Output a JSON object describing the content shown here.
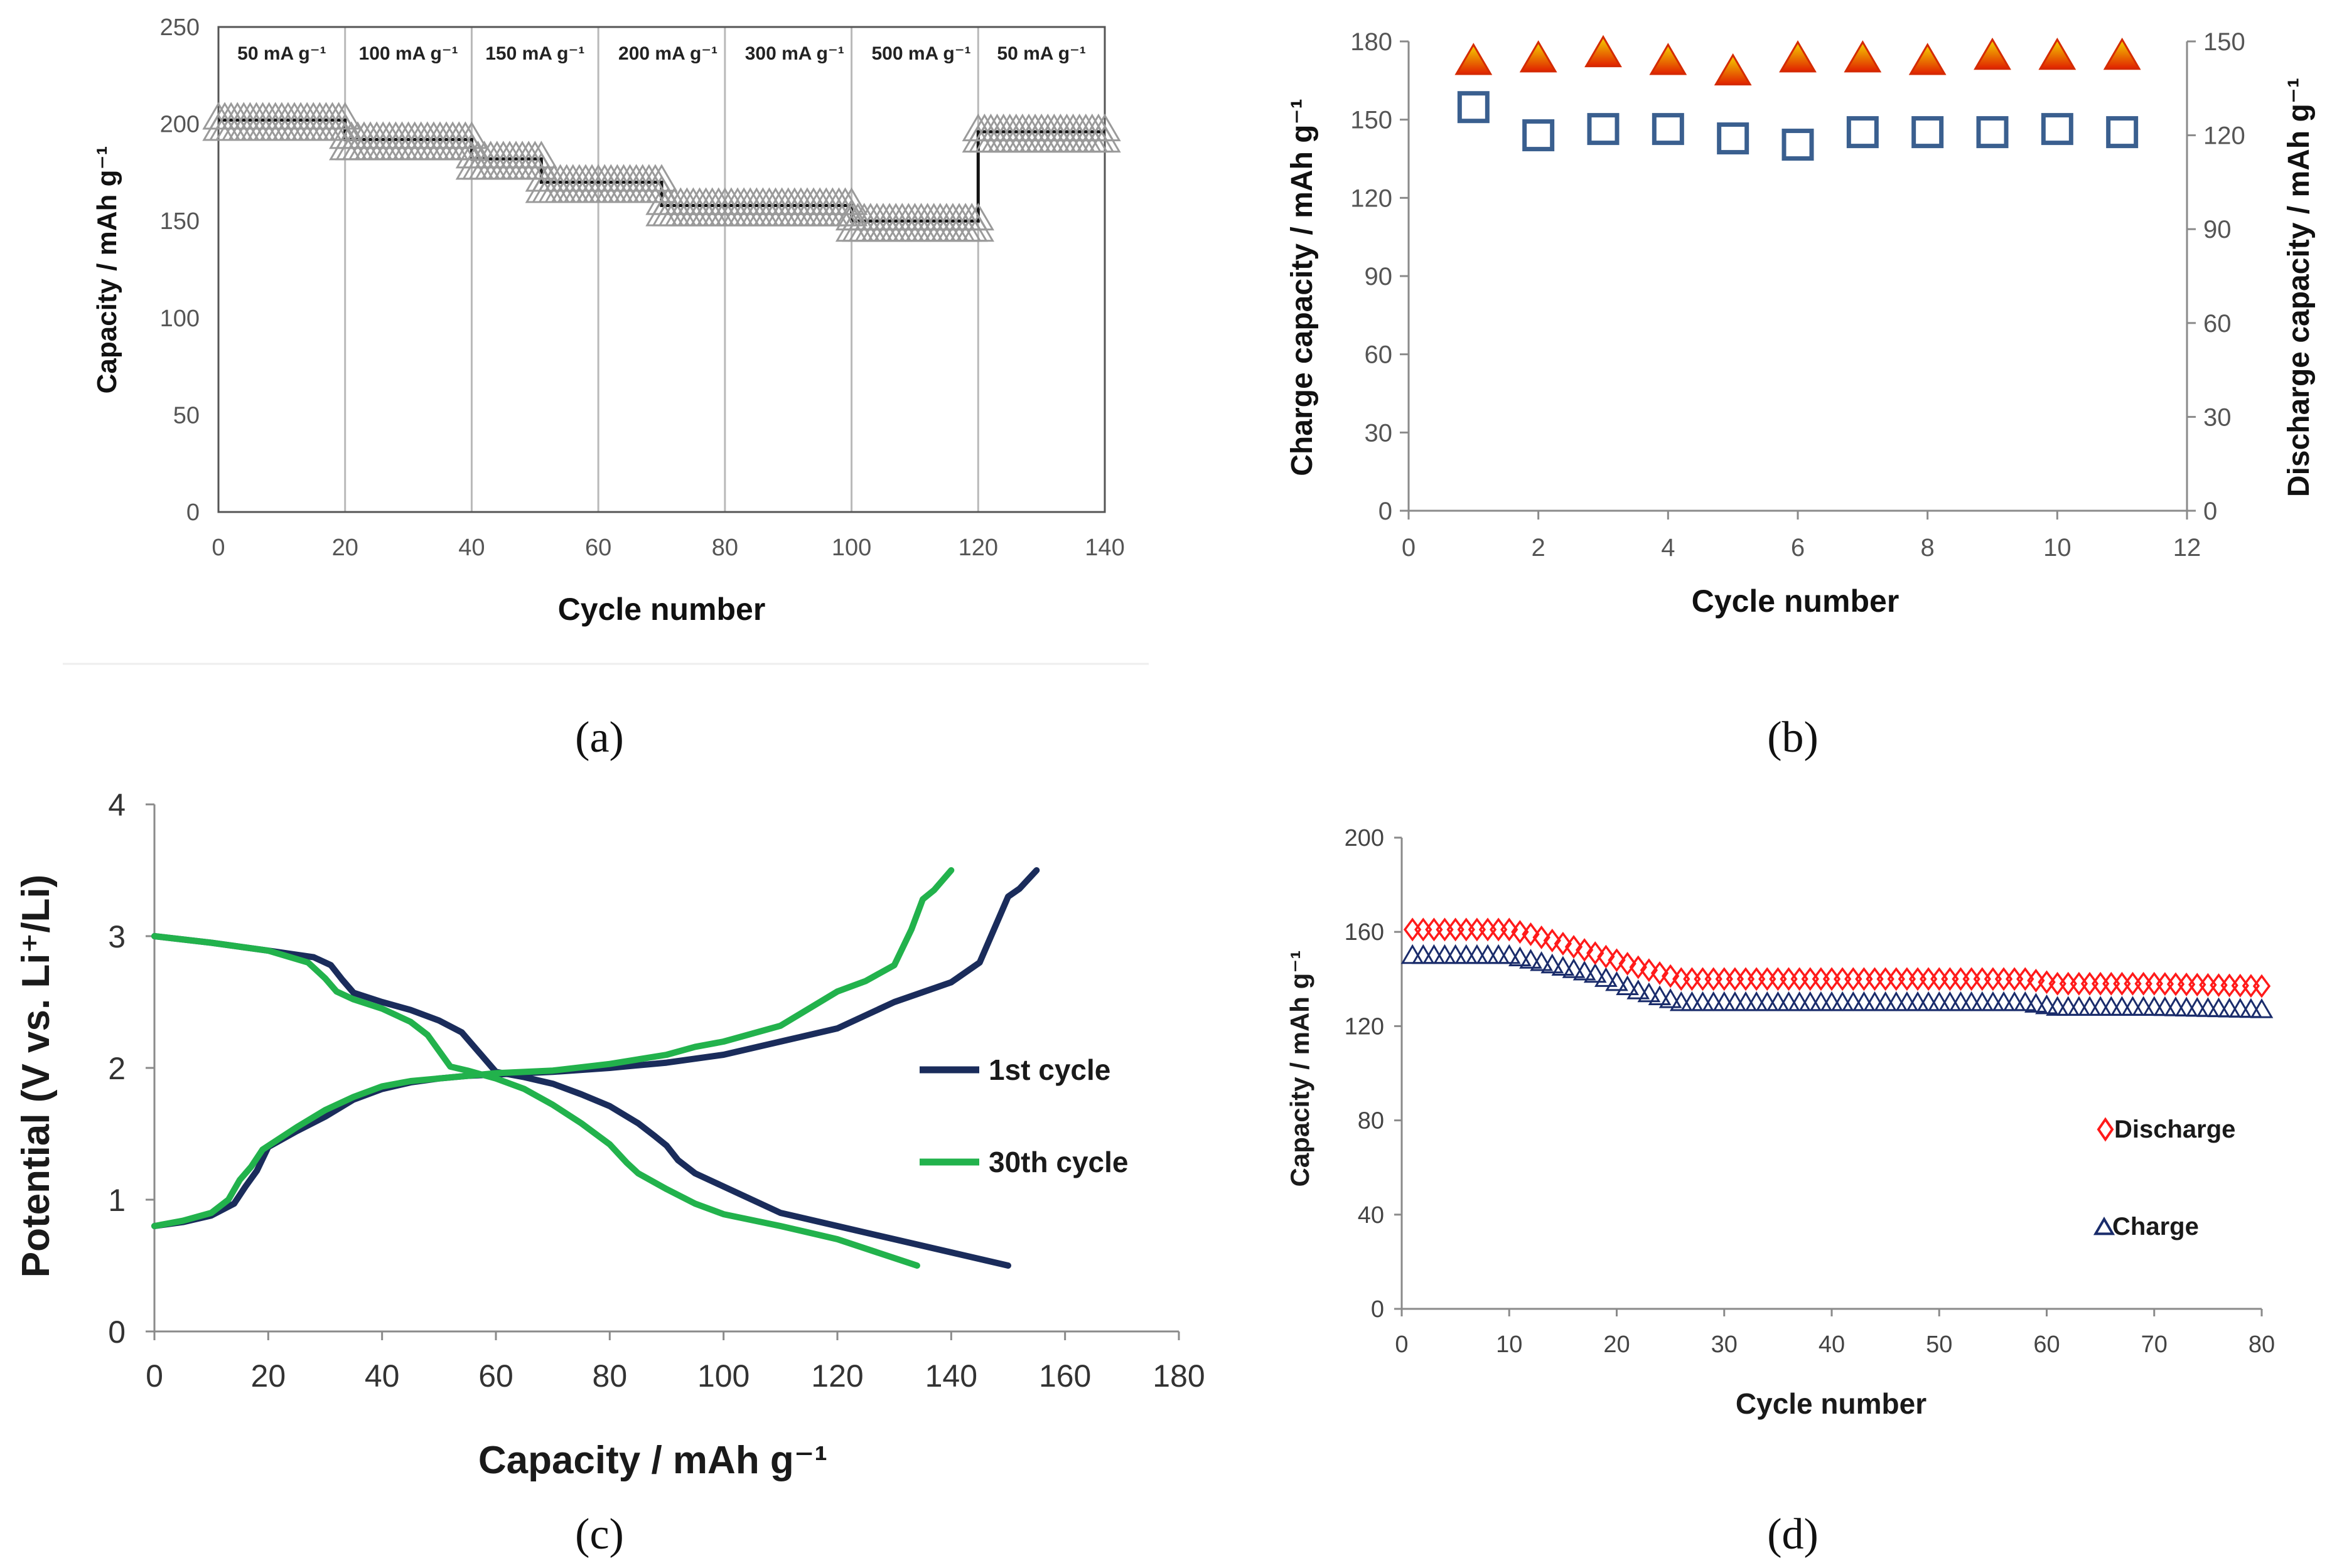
{
  "colors": {
    "rate_marker": "#9a9a9a",
    "rate_line": "#111111",
    "triangle_fill_top": "#f5d300",
    "triangle_fill_bottom": "#e02000",
    "triangle_stroke": "#d42a00",
    "square_stroke": "#3a5f8f",
    "cycle1": "#1a2c5b",
    "cycle30": "#22b24c",
    "discharge_marker": "#ff1a1a",
    "charge_marker": "#1a2c6b",
    "grid": "#b9b9b9",
    "axis": "#8a8a8a"
  },
  "panel_labels": {
    "a": "(a)",
    "b": "(b)",
    "c": "(c)",
    "d": "(d)"
  },
  "chart_data": [
    {
      "id": "a",
      "type": "scatter",
      "title": "",
      "xlabel": "Cycle number",
      "ylabel": "Capacity / mAh g⁻¹",
      "xlim": [
        0,
        140
      ],
      "ylim": [
        0,
        250
      ],
      "xticks": [
        0,
        20,
        40,
        60,
        80,
        100,
        120,
        140
      ],
      "yticks": [
        0,
        50,
        100,
        150,
        200,
        250
      ],
      "marker": "open-triangle",
      "grid": "vertical lines at 20-cycle intervals",
      "segments": [
        {
          "label": "50 mA g⁻¹",
          "x_range": [
            0,
            20
          ],
          "capacity": 202
        },
        {
          "label": "100 mA g⁻¹",
          "x_range": [
            20,
            40
          ],
          "capacity": 192
        },
        {
          "label": "150 mA g⁻¹",
          "x_range": [
            40,
            51
          ],
          "capacity": 182
        },
        {
          "label": "200 mA g⁻¹",
          "x_range": [
            51,
            70
          ],
          "capacity": 170
        },
        {
          "label": "300 mA g⁻¹",
          "x_range": [
            70,
            100
          ],
          "capacity": 158
        },
        {
          "label": "500 mA g⁻¹",
          "x_range": [
            100,
            120
          ],
          "capacity": 150
        },
        {
          "label": "50 mA g⁻¹",
          "x_range": [
            120,
            140
          ],
          "capacity": 196
        }
      ],
      "rate_labels": [
        {
          "text": "50 mA g⁻¹",
          "x": 10
        },
        {
          "text": "100 mA g⁻¹",
          "x": 30
        },
        {
          "text": "150 mA g⁻¹",
          "x": 50
        },
        {
          "text": "200 mA g⁻¹",
          "x": 71
        },
        {
          "text": "300 mA g⁻¹",
          "x": 91
        },
        {
          "text": "500 mA g⁻¹",
          "x": 111
        },
        {
          "text": "50 mA g⁻¹",
          "x": 130
        }
      ]
    },
    {
      "id": "b",
      "type": "scatter",
      "xlabel": "Cycle number",
      "ylabel": "Charge capacity / mAh g⁻¹",
      "y2label": "Discharge capacity / mAh g⁻¹",
      "xlim": [
        0,
        12
      ],
      "ylim": [
        0,
        180
      ],
      "y2lim": [
        0,
        150
      ],
      "xticks": [
        0,
        2,
        4,
        6,
        8,
        10,
        12
      ],
      "yticks": [
        0,
        30,
        60,
        90,
        120,
        150,
        180
      ],
      "y2ticks": [
        0,
        30,
        60,
        90,
        120,
        150
      ],
      "series": [
        {
          "name": "Charge",
          "axis": "left",
          "marker": "filled-triangle",
          "x": [
            1,
            2,
            3,
            4,
            5,
            6,
            7,
            8,
            9,
            10,
            11
          ],
          "y": [
            172,
            173,
            175,
            172,
            168,
            173,
            173,
            172,
            174,
            174,
            174
          ]
        },
        {
          "name": "Discharge",
          "axis": "right",
          "marker": "open-square",
          "x": [
            1,
            2,
            3,
            4,
            5,
            6,
            7,
            8,
            9,
            10,
            11
          ],
          "y": [
            129,
            120,
            122,
            122,
            119,
            117,
            121,
            121,
            121,
            122,
            121
          ]
        }
      ]
    },
    {
      "id": "c",
      "type": "line",
      "xlabel": "Capacity / mAh g⁻¹",
      "ylabel": "Potential (V vs. Li⁺/Li)",
      "xlim": [
        0,
        180
      ],
      "ylim": [
        0,
        4
      ],
      "xticks": [
        0,
        20,
        40,
        60,
        80,
        100,
        120,
        140,
        160,
        180
      ],
      "yticks": [
        0,
        1,
        2,
        3,
        4
      ],
      "legend": [
        "1st cycle",
        "30th cycle"
      ],
      "series": [
        {
          "name": "1st cycle",
          "branch": "discharge",
          "x": [
            0,
            10,
            20,
            28,
            31,
            33,
            35,
            40,
            45,
            50,
            54,
            57,
            60,
            65,
            70,
            75,
            80,
            85,
            88,
            90,
            92,
            95,
            100,
            105,
            110,
            120,
            130,
            140,
            150
          ],
          "y": [
            3.0,
            2.95,
            2.89,
            2.84,
            2.78,
            2.67,
            2.57,
            2.5,
            2.44,
            2.36,
            2.27,
            2.12,
            1.97,
            1.93,
            1.88,
            1.8,
            1.71,
            1.58,
            1.48,
            1.41,
            1.3,
            1.2,
            1.1,
            1.0,
            0.9,
            0.8,
            0.7,
            0.6,
            0.5
          ]
        },
        {
          "name": "1st cycle",
          "branch": "charge",
          "x": [
            0,
            5,
            10,
            14,
            16,
            18,
            20,
            25,
            30,
            35,
            40,
            45,
            50,
            55,
            60,
            70,
            80,
            90,
            100,
            110,
            120,
            125,
            130,
            140,
            145,
            148,
            150,
            152,
            155
          ],
          "y": [
            0.8,
            0.83,
            0.88,
            0.97,
            1.1,
            1.22,
            1.4,
            1.52,
            1.63,
            1.76,
            1.84,
            1.89,
            1.92,
            1.94,
            1.95,
            1.97,
            2.0,
            2.04,
            2.1,
            2.2,
            2.3,
            2.4,
            2.5,
            2.65,
            2.8,
            3.1,
            3.3,
            3.36,
            3.5
          ]
        },
        {
          "name": "30th cycle",
          "branch": "discharge",
          "x": [
            0,
            10,
            20,
            27,
            30,
            32,
            35,
            40,
            45,
            48,
            50,
            52,
            55,
            60,
            65,
            70,
            75,
            80,
            83,
            85,
            90,
            95,
            100,
            110,
            120,
            134
          ],
          "y": [
            3.0,
            2.95,
            2.89,
            2.8,
            2.68,
            2.58,
            2.52,
            2.45,
            2.35,
            2.25,
            2.13,
            2.01,
            1.98,
            1.92,
            1.84,
            1.72,
            1.58,
            1.42,
            1.28,
            1.2,
            1.08,
            0.97,
            0.89,
            0.8,
            0.7,
            0.5
          ]
        },
        {
          "name": "30th cycle",
          "branch": "charge",
          "x": [
            0,
            5,
            10,
            13,
            15,
            17,
            19,
            25,
            30,
            35,
            40,
            45,
            50,
            55,
            60,
            70,
            80,
            90,
            95,
            100,
            110,
            120,
            125,
            130,
            133,
            135,
            137,
            140
          ],
          "y": [
            0.8,
            0.84,
            0.9,
            1.0,
            1.15,
            1.25,
            1.38,
            1.55,
            1.68,
            1.78,
            1.86,
            1.9,
            1.92,
            1.94,
            1.96,
            1.98,
            2.03,
            2.1,
            2.16,
            2.2,
            2.32,
            2.58,
            2.66,
            2.78,
            3.05,
            3.28,
            3.35,
            3.5
          ]
        }
      ]
    },
    {
      "id": "d",
      "type": "scatter",
      "xlabel": "Cycle number",
      "ylabel": "Capacity / mAh g⁻¹",
      "xlim": [
        0,
        80
      ],
      "ylim": [
        0,
        200
      ],
      "xticks": [
        0,
        10,
        20,
        30,
        40,
        50,
        60,
        70,
        80
      ],
      "yticks": [
        0,
        40,
        80,
        120,
        160,
        200
      ],
      "legend": [
        "Discharge",
        "Charge"
      ],
      "series": [
        {
          "name": "Discharge",
          "marker": "open-diamond",
          "x": [
            1,
            5,
            10,
            12,
            18,
            22,
            26,
            30,
            40,
            50,
            58,
            61,
            70,
            80
          ],
          "y": [
            161,
            161,
            161,
            159,
            151,
            145,
            140,
            140,
            140,
            140,
            140,
            138,
            138,
            137
          ]
        },
        {
          "name": "Charge",
          "marker": "open-triangle",
          "x": [
            1,
            5,
            10,
            12,
            18,
            22,
            26,
            30,
            40,
            50,
            58,
            61,
            70,
            80
          ],
          "y": [
            150,
            150,
            150,
            148,
            142,
            135,
            130,
            130,
            130,
            130,
            130,
            128,
            128,
            127
          ]
        }
      ]
    }
  ]
}
